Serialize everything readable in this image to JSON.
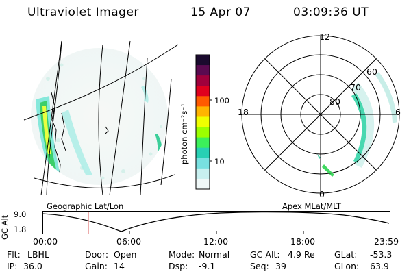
{
  "header": {
    "instrument": "Ultraviolet Imager",
    "date": "15 Apr 07",
    "time": "03:09:36 UT"
  },
  "left_panel": {
    "caption": "Geographic Lat/Lon"
  },
  "right_panel": {
    "caption": "Apex MLat/MLT",
    "lat_labels": [
      "60",
      "70",
      "80"
    ],
    "mlt_labels": {
      "top": "12",
      "left": "18",
      "right": "6",
      "bottom": "0"
    }
  },
  "colorbar": {
    "unit_label": "photon cm⁻²s⁻¹",
    "ticks": [
      "100",
      "10"
    ],
    "colors": [
      "#1a0a2e",
      "#5a0a50",
      "#a0003c",
      "#e0001e",
      "#ff5a00",
      "#ffb400",
      "#f0ff00",
      "#9cff00",
      "#3cf05a",
      "#28d0b4",
      "#78e0e0",
      "#c8f0f0",
      "#f0f8f8"
    ]
  },
  "timeline": {
    "y_label": "GC Alt",
    "y_ticks": [
      "9.0",
      "1.8"
    ],
    "x_ticks": [
      "00:00",
      "06:00",
      "12:00",
      "18:00",
      "23:59"
    ],
    "marker_fraction": 0.13,
    "marker_color": "#cc2222"
  },
  "status": {
    "row1": [
      {
        "label": "Flt:",
        "value": "LBHL"
      },
      {
        "label": "Door:",
        "value": "Open"
      },
      {
        "label": "Mode:",
        "value": "Normal"
      },
      {
        "label": "GC Alt:",
        "value": "4.9 Re"
      },
      {
        "label": "GLat:",
        "value": "-53.3"
      }
    ],
    "row2": [
      {
        "label": "IP:",
        "value": "36.0"
      },
      {
        "label": "Gain:",
        "value": "14"
      },
      {
        "label": "Dsp:",
        "value": "-9.1"
      },
      {
        "label": "Seq:",
        "value": "39"
      },
      {
        "label": "GLon:",
        "value": "63.9"
      }
    ]
  }
}
